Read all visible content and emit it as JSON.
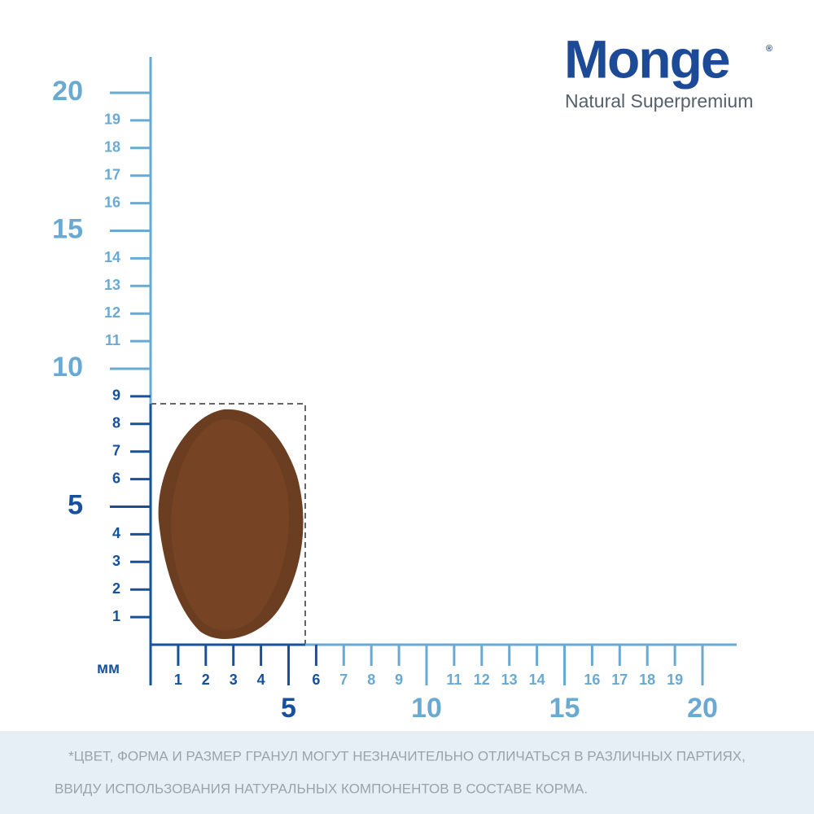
{
  "logo": {
    "brand": "Monge",
    "tagline": "Natural Superpremium"
  },
  "unit": "мм",
  "y_axis": {
    "dark": {
      "minor": [
        1,
        2,
        3,
        4,
        6,
        7,
        8,
        9
      ],
      "major": [
        5
      ]
    },
    "light": {
      "minor": [
        11,
        12,
        13,
        14,
        16,
        17,
        18,
        19
      ],
      "major": [
        10,
        15,
        20
      ]
    }
  },
  "x_axis": {
    "dark": {
      "minor": [
        1,
        2,
        3,
        4,
        6
      ],
      "major": [
        5
      ]
    },
    "light": {
      "minor": [
        7,
        8,
        9,
        11,
        12,
        13,
        14,
        16,
        17,
        18,
        19
      ],
      "major": [
        10,
        15,
        20
      ]
    }
  },
  "footnote": [
    "*ЦВЕТ, ФОРМА И РАЗМЕР ГРАНУЛ МОГУТ НЕЗНАЧИТЕЛЬНО ОТЛИЧАТЬСЯ В РАЗЛИЧНЫХ ПАРТИЯХ,",
    "ВВИДУ ИСПОЛЬЗОВАНИЯ НАТУРАЛЬНЫХ КОМПОНЕНТОВ В СОСТАВЕ КОРМА."
  ]
}
